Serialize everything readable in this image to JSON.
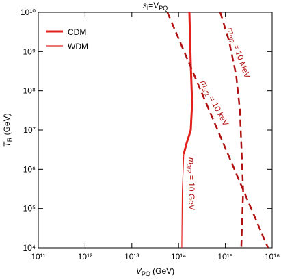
{
  "chart_data": {
    "type": "line",
    "title": [
      "s",
      "I",
      "=V",
      "PQ"
    ],
    "xlabel": [
      "V",
      "PQ",
      " (GeV)"
    ],
    "ylabel": [
      "T",
      "R",
      " (GeV)"
    ],
    "log_x": true,
    "log_y": true,
    "xlim": [
      100000000000.0,
      1e+16
    ],
    "ylim": [
      10000.0,
      10000000000.0
    ],
    "xticks": [
      {
        "value": 100000000000.0,
        "label": "10¹¹"
      },
      {
        "value": 1000000000000.0,
        "label": "10¹²"
      },
      {
        "value": 10000000000000.0,
        "label": "10¹³"
      },
      {
        "value": 100000000000000.0,
        "label": "10¹⁴"
      },
      {
        "value": 1000000000000000.0,
        "label": "10¹⁵"
      },
      {
        "value": 1e+16,
        "label": "10¹⁶"
      }
    ],
    "yticks": [
      {
        "value": 10000.0,
        "label": "10⁴"
      },
      {
        "value": 100000.0,
        "label": "10⁵"
      },
      {
        "value": 1000000.0,
        "label": "10⁶"
      },
      {
        "value": 10000000.0,
        "label": "10⁷"
      },
      {
        "value": 100000000.0,
        "label": "10⁸"
      },
      {
        "value": 1000000000.0,
        "label": "10⁹"
      },
      {
        "value": 10000000000.0,
        "label": "10¹⁰"
      }
    ],
    "legend": "upper left",
    "series": [
      {
        "name": "CDM",
        "color": "#e3211c",
        "width": 3,
        "x": [
          170000000000000.0,
          182000000000000.0,
          195000000000000.0,
          182000000000000.0,
          145000000000000.0,
          129000000000000.0
        ],
        "values": [
          10000000000.0,
          457000000.0,
          50000000.0,
          10000000.0,
          4200000.0,
          2450000.0
        ]
      },
      {
        "name": "WDM",
        "color": "#e3211c",
        "width": 1.2,
        "x": [
          129000000000000.0,
          120000000000000.0,
          117000000000000.0
        ],
        "values": [
          2450000.0,
          270000.0,
          10000.0
        ]
      }
    ],
    "contours": [
      {
        "label": [
          "m",
          "3/2",
          " = 10 GeV"
        ],
        "color": "#b01010"
      },
      {
        "label": [
          "m",
          "3/2",
          " = 10 keV"
        ],
        "color": "#b01010",
        "dashed": true,
        "x": [
          57500000000000.0,
          8130000000000000.0
        ],
        "values": [
          10000000000.0,
          10000.0
        ]
      },
      {
        "label": [
          "m",
          "3/2",
          " = 10 MeV"
        ],
        "color": "#b01010",
        "dashed": true,
        "x": [
          776000000000000.0,
          1200000000000000.0,
          1700000000000000.0,
          2040000000000000.0,
          2190000000000000.0,
          2400000000000000.0,
          2290000000000000.0,
          2190000000000000.0
        ],
        "values": [
          10000000000.0,
          1860000000.0,
          250000000.0,
          33000000.0,
          4500000.0,
          270000.0,
          54000.0,
          10000.0
        ]
      }
    ]
  }
}
